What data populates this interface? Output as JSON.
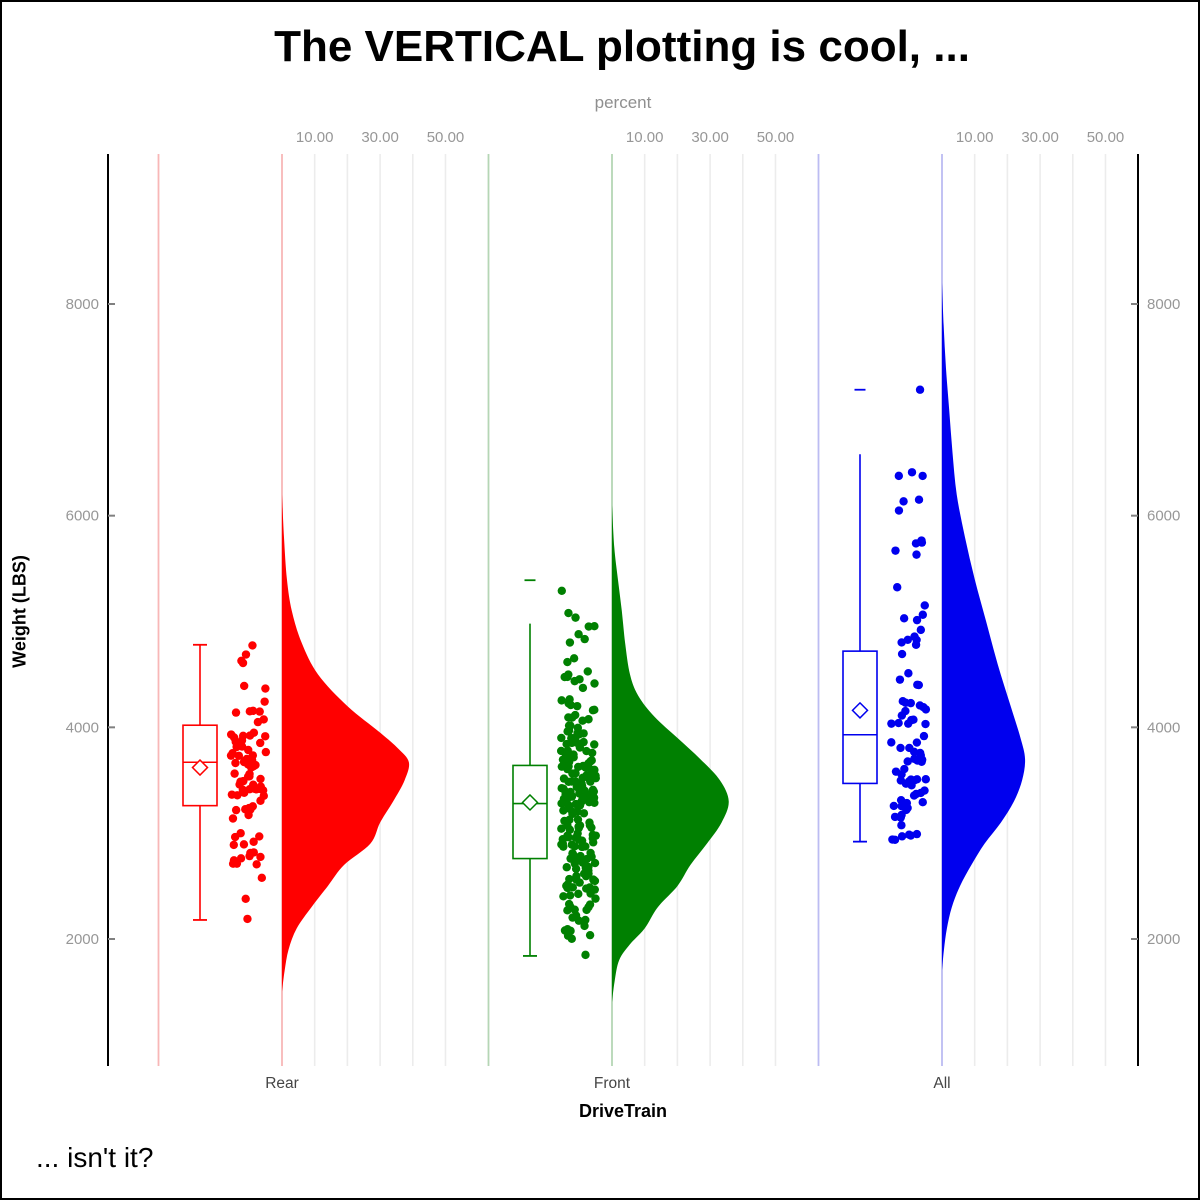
{
  "title": "The VERTICAL plotting is cool, ...",
  "footer_note": "... isn't it?",
  "chart_data": {
    "type": "raincloud-vertical (half-violin + box plot + jittered points)",
    "title": "The VERTICAL plotting is cool, ...",
    "x_axis": {
      "label": "DriveTrain",
      "categories": [
        "Rear",
        "Front",
        "All"
      ]
    },
    "y_axis": {
      "label": "Weight (LBS)",
      "ticks": [
        2000,
        4000,
        6000,
        8000
      ],
      "range": [
        760,
        9440
      ],
      "sides": [
        "left",
        "right"
      ]
    },
    "percent_axis": {
      "label": "percent",
      "tick_values": [
        10,
        30,
        50
      ],
      "tick_labels": [
        "10.00",
        "30.00",
        "50.00"
      ],
      "gridline_values": [
        10,
        20,
        30,
        40,
        50
      ],
      "per_group": true
    },
    "grid": {
      "color": "#ececec",
      "zero_line_light": true
    },
    "groups": [
      {
        "name": "Rear",
        "color": "#FF0000",
        "color_light": "#F8B7B7",
        "n_points": 90,
        "box": {
          "whisker_low": 2180,
          "q1": 3260,
          "median": 3670,
          "mean": 3620,
          "q3": 4020,
          "whisker_high": 4780,
          "whisker_line_high": 4780,
          "cap_detached": null
        },
        "violin_profile": [
          [
            1500,
            0
          ],
          [
            1700,
            0.8
          ],
          [
            1900,
            2
          ],
          [
            2100,
            4.5
          ],
          [
            2300,
            9
          ],
          [
            2500,
            14
          ],
          [
            2700,
            19
          ],
          [
            2900,
            27
          ],
          [
            3100,
            30
          ],
          [
            3300,
            34
          ],
          [
            3500,
            37.5
          ],
          [
            3670,
            38.8
          ],
          [
            3800,
            35.5
          ],
          [
            3950,
            30
          ],
          [
            4200,
            20
          ],
          [
            4500,
            11
          ],
          [
            4800,
            6
          ],
          [
            5100,
            3
          ],
          [
            5400,
            1.5
          ],
          [
            5800,
            0.6
          ],
          [
            6200,
            0
          ]
        ],
        "jitter": {
          "n": 88,
          "seed": 11,
          "min": 2550,
          "max": 4790
        },
        "extra_points": [
          [
            2380,
            0.42
          ],
          [
            2190,
            0.47
          ]
        ]
      },
      {
        "name": "Front",
        "color": "#008001",
        "color_light": "#B5D6B5",
        "n_points": 220,
        "box": {
          "whisker_low": 1840,
          "q1": 2760,
          "median": 3280,
          "mean": 3290,
          "q3": 3640,
          "whisker_high": 5390,
          "whisker_line_high": 4980,
          "cap_detached": 5390
        },
        "violin_profile": [
          [
            1400,
            0
          ],
          [
            1600,
            0.8
          ],
          [
            1800,
            2.2
          ],
          [
            1950,
            5.5
          ],
          [
            2100,
            10
          ],
          [
            2300,
            14
          ],
          [
            2500,
            20
          ],
          [
            2700,
            24
          ],
          [
            2900,
            29
          ],
          [
            3100,
            33.5
          ],
          [
            3300,
            35.7
          ],
          [
            3500,
            33
          ],
          [
            3700,
            27
          ],
          [
            3900,
            20
          ],
          [
            4100,
            13
          ],
          [
            4300,
            8
          ],
          [
            4500,
            5.5
          ],
          [
            4800,
            4
          ],
          [
            5100,
            3
          ],
          [
            5400,
            1.8
          ],
          [
            5700,
            0.7
          ],
          [
            6100,
            0
          ]
        ],
        "jitter": {
          "n": 219,
          "seed": 23,
          "min": 1950,
          "max": 5420
        },
        "extra_points": [
          [
            1850,
            0.7
          ]
        ]
      },
      {
        "name": "All",
        "color": "#0000EE",
        "color_light": "#BCBCF2",
        "n_points": 88,
        "box": {
          "whisker_low": 2920,
          "q1": 3470,
          "median": 3930,
          "mean": 4160,
          "q3": 4720,
          "whisker_high": 7190,
          "whisker_line_high": 6580,
          "cap_detached": 7190
        },
        "violin_profile": [
          [
            1700,
            0
          ],
          [
            1900,
            0.6
          ],
          [
            2100,
            1.5
          ],
          [
            2300,
            3
          ],
          [
            2500,
            5.5
          ],
          [
            2700,
            9
          ],
          [
            2900,
            13
          ],
          [
            3100,
            18
          ],
          [
            3300,
            22
          ],
          [
            3500,
            24.5
          ],
          [
            3700,
            25.4
          ],
          [
            3900,
            24
          ],
          [
            4200,
            21
          ],
          [
            4600,
            17
          ],
          [
            5000,
            13.5
          ],
          [
            5400,
            10
          ],
          [
            5800,
            7
          ],
          [
            6200,
            4.5
          ],
          [
            6600,
            3.2
          ],
          [
            7000,
            2.2
          ],
          [
            7400,
            1.2
          ],
          [
            7800,
            0.5
          ],
          [
            8200,
            0
          ]
        ],
        "jitter": {
          "n": 86,
          "seed": 37,
          "min": 2900,
          "max": 6500
        },
        "extra_points": [
          [
            7190,
            0.83
          ],
          [
            6410,
            0.6
          ]
        ]
      }
    ],
    "style": {
      "axis_color": "#000000",
      "tick_color": "#808080",
      "tick_label_color": "#979797",
      "category_label_color": "#454545"
    }
  }
}
